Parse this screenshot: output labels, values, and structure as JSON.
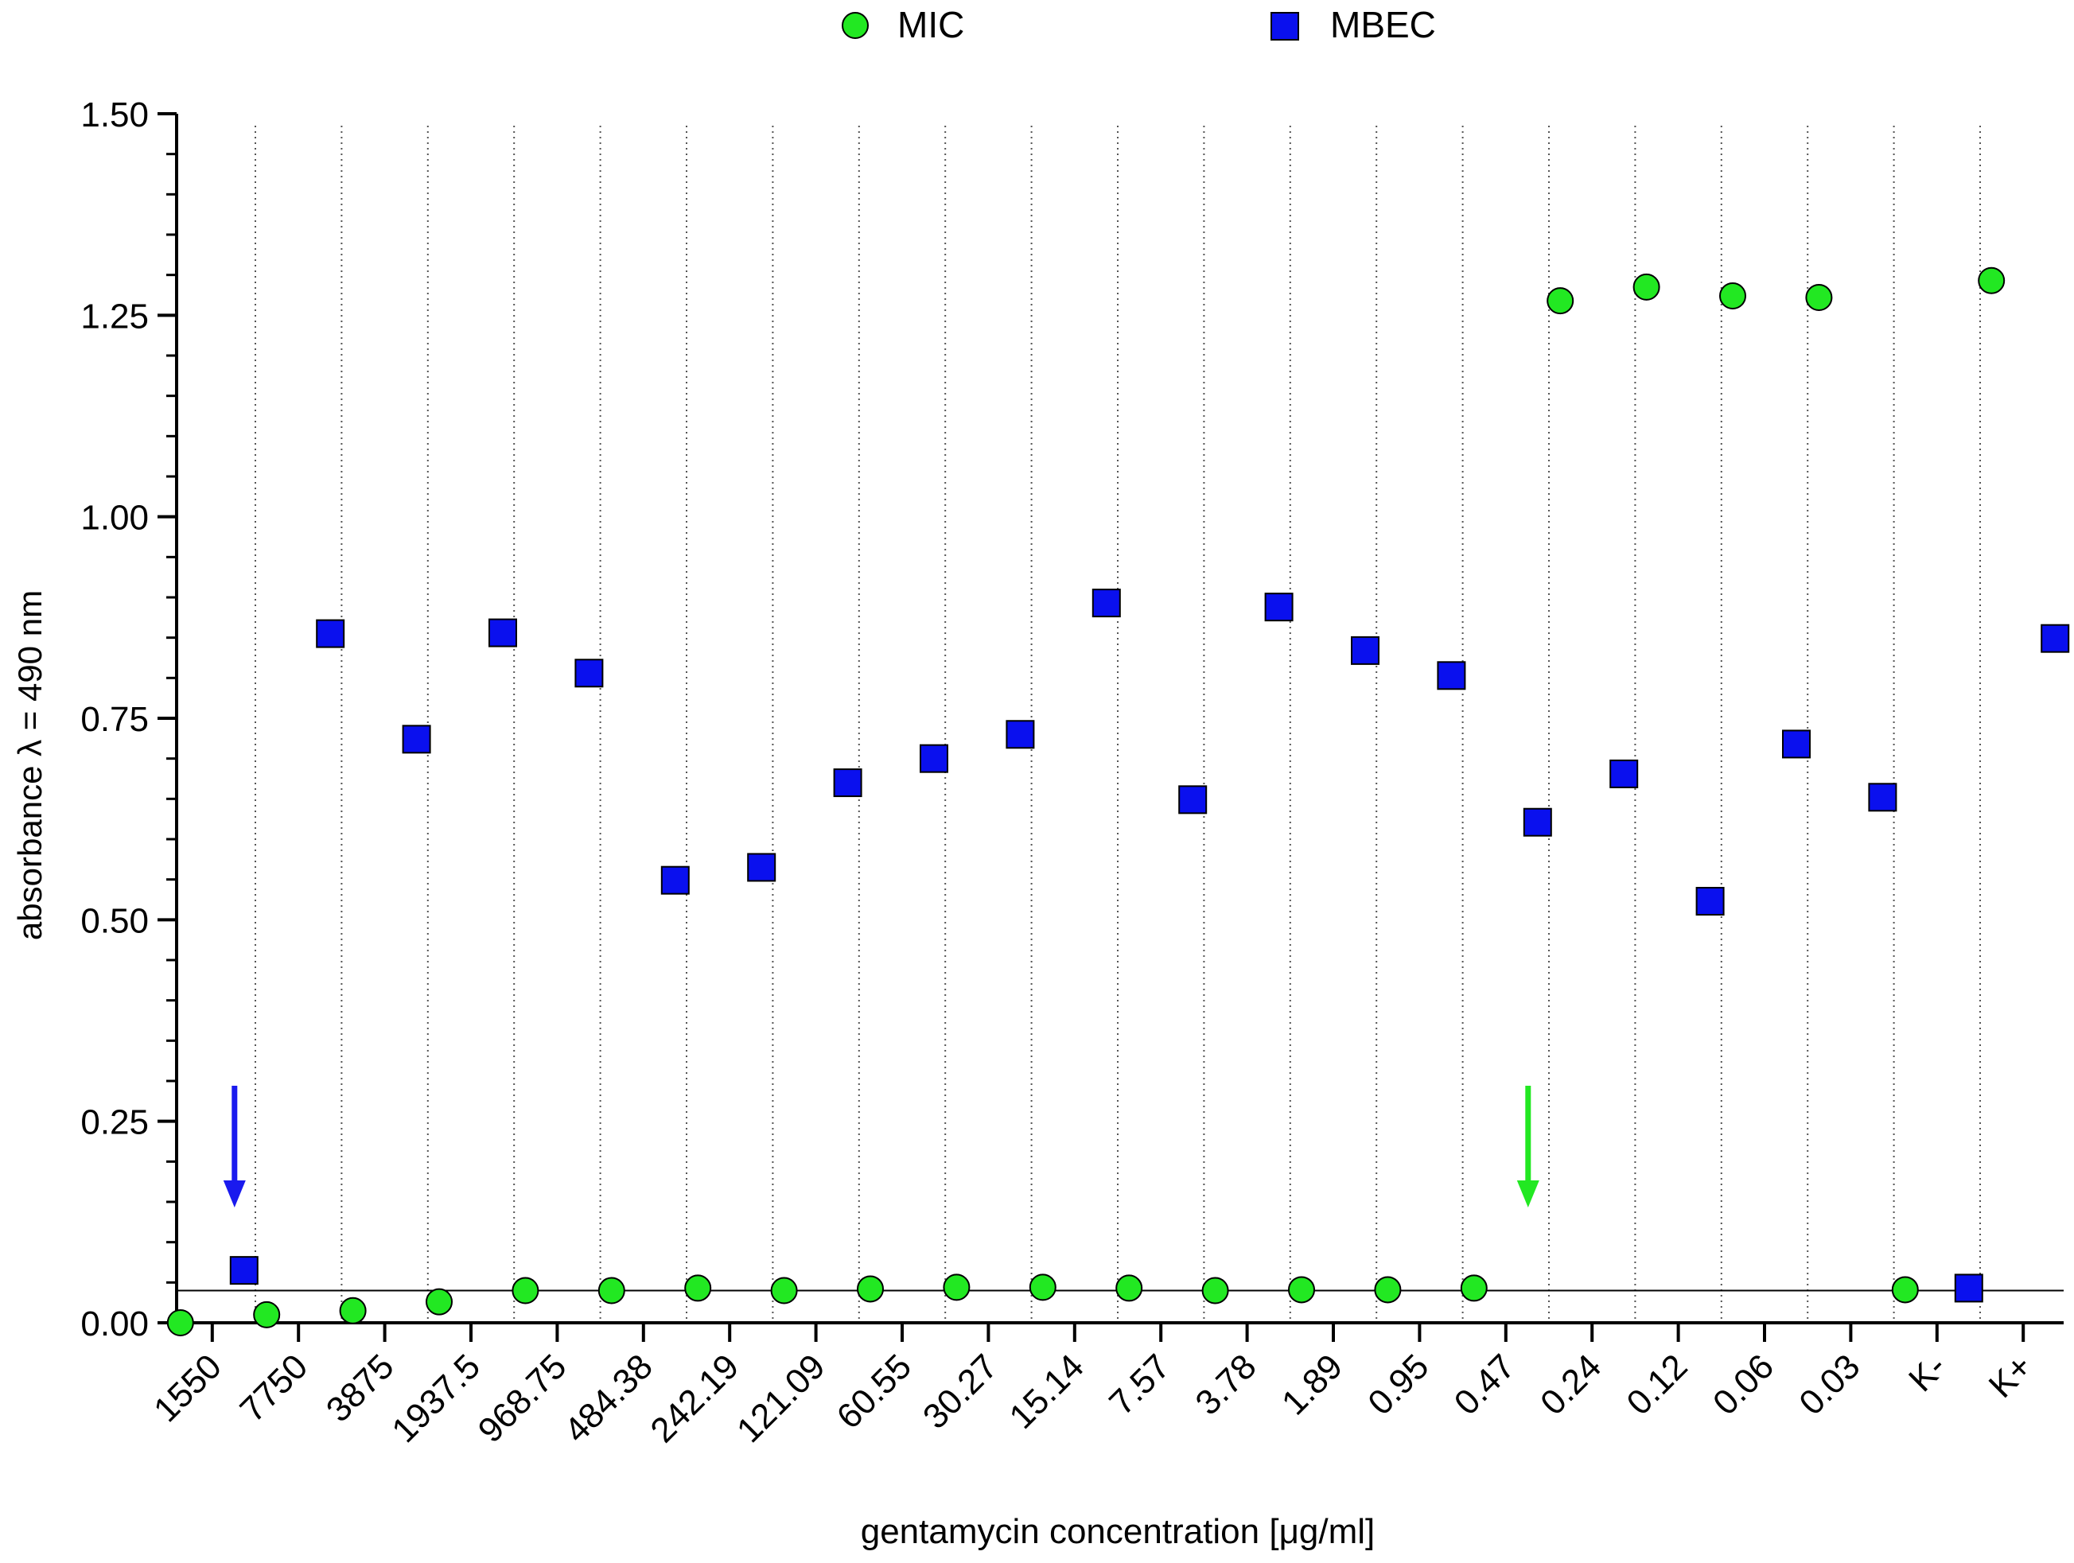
{
  "chart_data": {
    "type": "scatter",
    "title": "",
    "xlabel": "gentamycin concentration [μg/ml]",
    "ylabel": "absorbance λ = 490 nm",
    "categories": [
      "1550",
      "7750",
      "3875",
      "1937.5",
      "968.75",
      "484.38",
      "242.19",
      "121.09",
      "60.55",
      "30.27",
      "15.14",
      "7.57",
      "3.78",
      "1.89",
      "0.95",
      "0.47",
      "0.24",
      "0.12",
      "0.06",
      "0.03",
      "K-",
      "K+"
    ],
    "ylim": [
      0,
      1.5
    ],
    "yticks": [
      "0.00",
      "0.25",
      "0.50",
      "0.75",
      "1.00",
      "1.25",
      "1.50"
    ],
    "legend_position": "top-center",
    "grid": "dotted vertical lines between categories",
    "reference_line_y": 0.04,
    "series": [
      {
        "name": "MIC",
        "marker": "circle",
        "color": "#22e822",
        "values": [
          0.0,
          0.01,
          0.015,
          0.026,
          0.04,
          0.04,
          0.043,
          0.04,
          0.042,
          0.044,
          0.044,
          0.043,
          0.04,
          0.041,
          0.041,
          0.043,
          1.268,
          1.285,
          1.274,
          1.272,
          0.041,
          1.293
        ]
      },
      {
        "name": "MBEC",
        "marker": "square",
        "color": "#0a10ee",
        "values": [
          0.065,
          0.855,
          0.724,
          0.856,
          0.806,
          0.549,
          0.565,
          0.67,
          0.7,
          0.73,
          0.893,
          0.649,
          0.888,
          0.834,
          0.803,
          0.621,
          0.681,
          0.523,
          0.718,
          0.652,
          0.043,
          0.849
        ]
      }
    ],
    "annotations": [
      {
        "type": "arrow-down",
        "color": "#1a1aee",
        "category": "1550"
      },
      {
        "type": "arrow-down",
        "color": "#22e822",
        "category": "0.47"
      }
    ]
  }
}
